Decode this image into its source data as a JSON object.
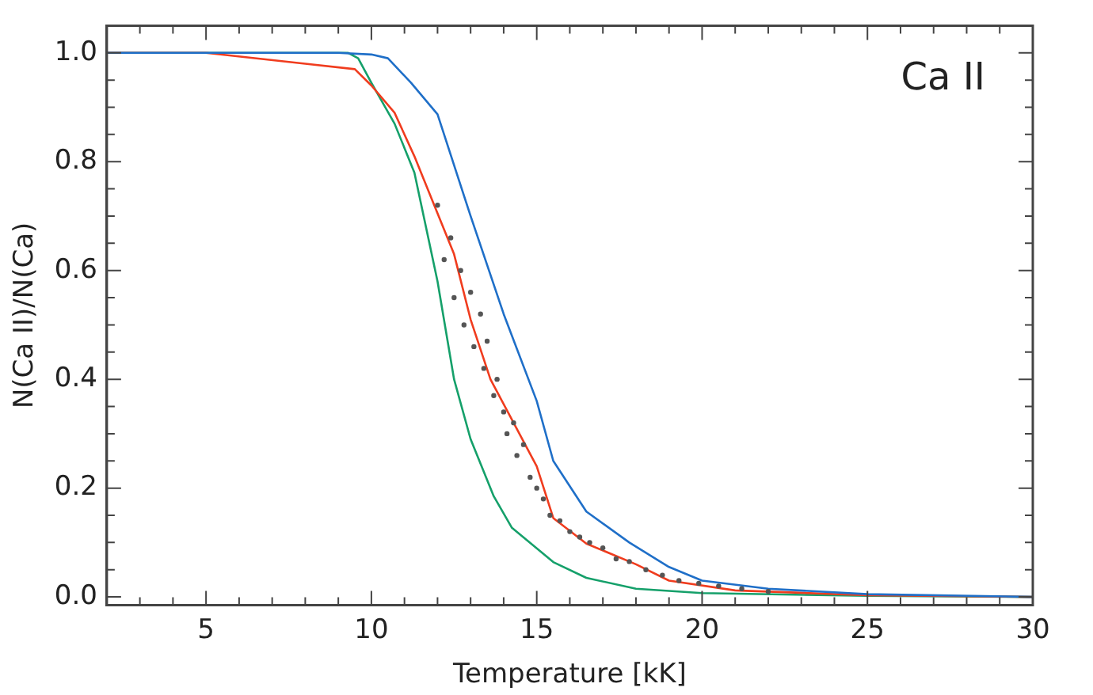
{
  "chart_data": {
    "type": "line",
    "xlabel": "Temperature [kK]",
    "ylabel": "N(Ca II)/N(Ca)",
    "annotations": [
      "Ca II"
    ],
    "xlim": [
      2,
      30
    ],
    "ylim": [
      -0.015,
      1.05
    ],
    "xticks": [
      {
        "value": 2,
        "label": null
      },
      {
        "value": 3,
        "label": null
      },
      {
        "value": 4,
        "label": null
      },
      5,
      {
        "value": 6,
        "label": null
      },
      {
        "value": 7,
        "label": null
      },
      {
        "value": 8,
        "label": null
      },
      {
        "value": 9,
        "label": null
      },
      10,
      {
        "value": 11,
        "label": null
      },
      {
        "value": 12,
        "label": null
      },
      {
        "value": 13,
        "label": null
      },
      {
        "value": 14,
        "label": null
      },
      15,
      {
        "value": 16,
        "label": null
      },
      {
        "value": 17,
        "label": null
      },
      {
        "value": 18,
        "label": null
      },
      {
        "value": 19,
        "label": null
      },
      20,
      {
        "value": 21,
        "label": null
      },
      {
        "value": 22,
        "label": null
      },
      {
        "value": 23,
        "label": null
      },
      {
        "value": 24,
        "label": null
      },
      25,
      {
        "value": 26,
        "label": null
      },
      {
        "value": 27,
        "label": null
      },
      {
        "value": 28,
        "label": null
      },
      {
        "value": 29,
        "label": null
      },
      30
    ],
    "yticks": [
      {
        "value": 0,
        "label": "0.0"
      },
      {
        "value": 0.05,
        "label": null
      },
      {
        "value": 0.1,
        "label": null
      },
      {
        "value": 0.15,
        "label": null
      },
      {
        "value": 0.2,
        "label": "0.2"
      },
      {
        "value": 0.25,
        "label": null
      },
      {
        "value": 0.3,
        "label": null
      },
      {
        "value": 0.35,
        "label": null
      },
      {
        "value": 0.4,
        "label": "0.4"
      },
      {
        "value": 0.45,
        "label": null
      },
      {
        "value": 0.5,
        "label": null
      },
      {
        "value": 0.55,
        "label": null
      },
      {
        "value": 0.6,
        "label": "0.6"
      },
      {
        "value": 0.65,
        "label": null
      },
      {
        "value": 0.7,
        "label": null
      },
      {
        "value": 0.75,
        "label": null
      },
      {
        "value": 0.8,
        "label": "0.8"
      },
      {
        "value": 0.85,
        "label": null
      },
      {
        "value": 0.9,
        "label": null
      },
      {
        "value": 0.95,
        "label": null
      },
      {
        "value": 1,
        "label": "1.0"
      }
    ],
    "grid": false,
    "legend": false,
    "marker": "none",
    "line_style": "solid",
    "series": [
      {
        "type": "scatter",
        "color": "#555555",
        "marker": "circle",
        "x": [
          12.0,
          12.2,
          12.4,
          12.5,
          12.7,
          12.8,
          13.0,
          13.1,
          13.3,
          13.4,
          13.5,
          13.7,
          13.8,
          14.0,
          14.1,
          14.3,
          14.4,
          14.6,
          14.8,
          15.0,
          15.2,
          15.4,
          15.7,
          16.0,
          16.3,
          16.6,
          17.0,
          17.4,
          17.8,
          18.3,
          18.8,
          19.3,
          19.9,
          20.5,
          21.2,
          22.0
        ],
        "values": [
          0.72,
          0.62,
          0.66,
          0.55,
          0.6,
          0.5,
          0.56,
          0.46,
          0.52,
          0.42,
          0.47,
          0.37,
          0.4,
          0.34,
          0.3,
          0.32,
          0.26,
          0.28,
          0.22,
          0.2,
          0.18,
          0.15,
          0.14,
          0.12,
          0.11,
          0.1,
          0.09,
          0.07,
          0.065,
          0.05,
          0.04,
          0.03,
          0.025,
          0.02,
          0.015,
          0.01
        ]
      },
      {
        "color": "#1f6fc8",
        "x": [
          2,
          5,
          9,
          10,
          10.5,
          11.2,
          12,
          13,
          14,
          15,
          15.5,
          16.5,
          17.8,
          19,
          20,
          22,
          25,
          30
        ],
        "values": [
          1.0,
          1.0,
          1.0,
          0.997,
          0.99,
          0.945,
          0.887,
          0.7,
          0.52,
          0.36,
          0.25,
          0.157,
          0.1,
          0.055,
          0.03,
          0.015,
          0.005,
          0.0
        ]
      },
      {
        "color": "#f03c1e",
        "x": [
          2,
          5,
          8,
          9.5,
          10,
          10.7,
          11.3,
          12.5,
          13,
          13.6,
          14.3,
          15,
          15.5,
          16.5,
          18,
          19,
          21,
          25,
          30
        ],
        "values": [
          1.0,
          1.0,
          0.98,
          0.97,
          0.94,
          0.89,
          0.81,
          0.63,
          0.51,
          0.4,
          0.32,
          0.24,
          0.145,
          0.098,
          0.06,
          0.03,
          0.012,
          0.003,
          0.0
        ]
      },
      {
        "color": "#15a06a",
        "x": [
          2,
          5,
          9.3,
          9.6,
          10,
          10.7,
          11.3,
          12,
          12.5,
          13,
          13.7,
          14.25,
          15.5,
          16.5,
          18,
          20,
          25,
          30
        ],
        "values": [
          1.0,
          1.0,
          1.0,
          0.99,
          0.945,
          0.87,
          0.78,
          0.58,
          0.4,
          0.29,
          0.185,
          0.127,
          0.064,
          0.035,
          0.015,
          0.007,
          0.002,
          0.0
        ]
      }
    ]
  }
}
